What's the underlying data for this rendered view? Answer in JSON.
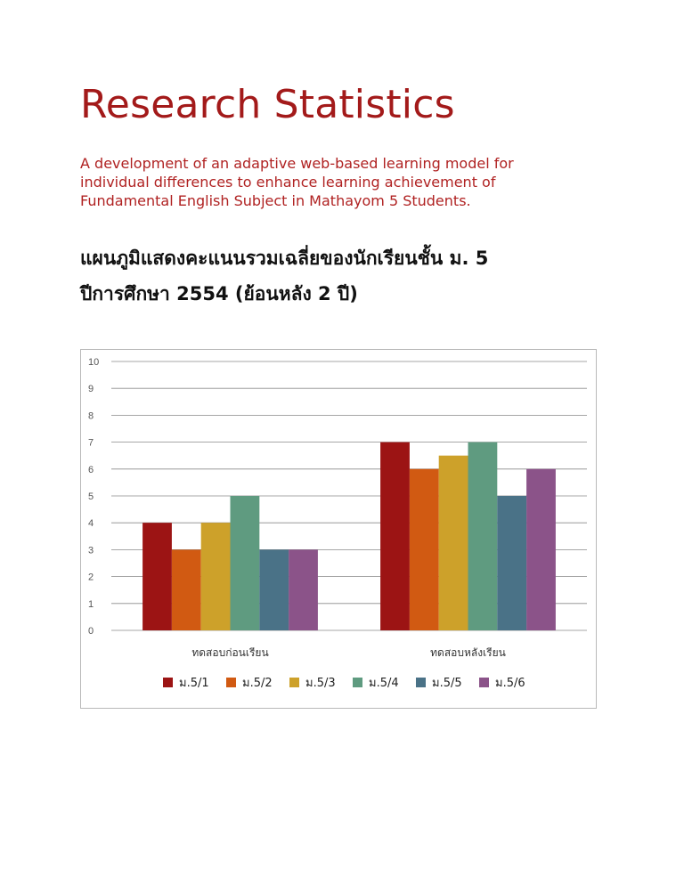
{
  "page": {
    "title": "Research Statistics",
    "subtitle_lines": [
      "A development of an adaptive web-based learning model for",
      "individual differences to enhance learning achievement of",
      "Fundamental English Subject in Mathayom 5 Students."
    ],
    "heading_lines": [
      "แผนภูมิแสดงคะแนนรวมเฉลี่ยของนักเรียนชั้น ม. 5",
      "ปีการศึกษา 2554 (ย้อนหลัง 2 ปี)"
    ],
    "accent_color": "#a31a1a"
  },
  "chart_data": {
    "type": "bar",
    "categories": [
      "ทดสอบก่อนเรียน",
      "ทดสอบหลังเรียน"
    ],
    "series": [
      {
        "name": "ม.5/1",
        "color": "#9c1414",
        "values": [
          4,
          7
        ]
      },
      {
        "name": "ม.5/2",
        "color": "#d15a12",
        "values": [
          3,
          6
        ]
      },
      {
        "name": "ม.5/3",
        "color": "#cda12a",
        "values": [
          4,
          6.5
        ]
      },
      {
        "name": "ม.5/4",
        "color": "#5f9b80",
        "values": [
          5,
          7
        ]
      },
      {
        "name": "ม.5/5",
        "color": "#4a7287",
        "values": [
          3,
          5
        ]
      },
      {
        "name": "ม.5/6",
        "color": "#8b5389",
        "values": [
          3,
          6
        ]
      }
    ],
    "ylim": [
      0,
      10
    ],
    "yticks": [
      "0",
      "1",
      "2",
      "3",
      "4",
      "5",
      "6",
      "7",
      "8",
      "9",
      "10"
    ],
    "grid": true,
    "legend_position": "bottom"
  }
}
